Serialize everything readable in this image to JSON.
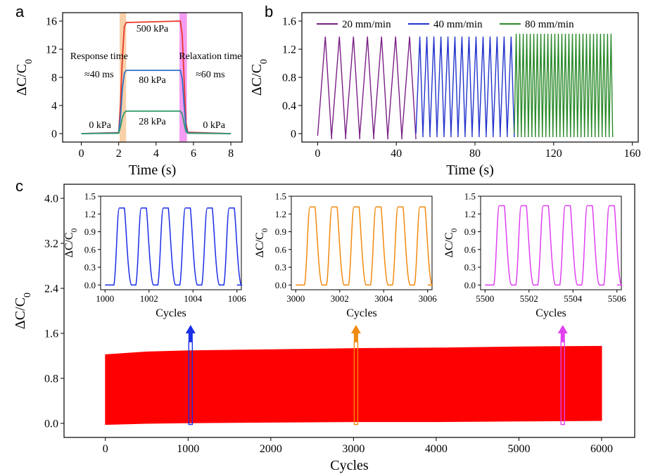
{
  "panels": {
    "a": {
      "label": "a"
    },
    "b": {
      "label": "b"
    },
    "c": {
      "label": "c"
    }
  },
  "chart_data": [
    {
      "id": "a",
      "type": "line",
      "xlabel": "Time (s)",
      "ylabel": "ΔC/C",
      "ylabel_sub": "0",
      "xlim": [
        -1,
        8.6
      ],
      "ylim": [
        -1.2,
        17.2
      ],
      "xticks": [
        0,
        2,
        4,
        6,
        8
      ],
      "yticks": [
        0,
        4,
        8,
        12,
        16
      ],
      "series": [
        {
          "name": "500 kPa",
          "color": "#e8382a",
          "x": [
            0,
            2.0,
            2.1,
            2.2,
            2.3,
            2.4,
            5.3,
            5.4,
            5.5,
            5.6,
            5.7,
            8.0
          ],
          "y": [
            0,
            0.15,
            4.5,
            11.0,
            15.2,
            15.8,
            16.0,
            14.0,
            7.5,
            1.5,
            0.2,
            0
          ]
        },
        {
          "name": "80 kPa",
          "color": "#2e72c9",
          "x": [
            0,
            2.0,
            2.1,
            2.2,
            2.3,
            2.4,
            5.3,
            5.4,
            5.5,
            5.6,
            5.7,
            8.0
          ],
          "y": [
            0,
            0.1,
            2.5,
            6.5,
            8.6,
            9.0,
            9.0,
            7.8,
            4.0,
            0.8,
            0.1,
            0
          ]
        },
        {
          "name": "28 kPa",
          "color": "#2f9a6a",
          "x": [
            0,
            2.0,
            2.1,
            2.2,
            2.3,
            2.4,
            5.3,
            5.4,
            5.5,
            5.6,
            5.7,
            8.0
          ],
          "y": [
            0,
            0.05,
            1.0,
            2.3,
            3.0,
            3.2,
            3.2,
            2.8,
            1.4,
            0.3,
            0.05,
            0
          ]
        }
      ],
      "bands": [
        {
          "x0": 2.05,
          "x1": 2.4,
          "color": "#f7c99a"
        },
        {
          "x0": 5.25,
          "x1": 5.65,
          "color": "#f28bf0"
        }
      ],
      "annotations": {
        "p500": "500 kPa",
        "p80": "80 kPa",
        "p28": "28 kPa",
        "p0_left": "0 kPa",
        "p0_right": "0 kPa",
        "response_title": "Response time",
        "response_value": "≈40 ms",
        "relax_title": "Relaxation time",
        "relax_value": "≈60 ms"
      }
    },
    {
      "id": "b",
      "type": "line",
      "xlabel": "Time (s)",
      "ylabel": "ΔC/C",
      "ylabel_sub": "0",
      "xlim": [
        -8,
        163
      ],
      "ylim": [
        -0.12,
        1.72
      ],
      "xticks": [
        0,
        40,
        80,
        120,
        160
      ],
      "yticks": [
        0.0,
        0.4,
        0.8,
        1.2,
        1.6
      ],
      "series": [
        {
          "name": "20 mm/min",
          "color": "#7a1f86",
          "x_start": 0,
          "x_end": 50,
          "cycles": 7,
          "peak": 1.38,
          "base": -0.03
        },
        {
          "name": "40 mm/min",
          "color": "#2233cc",
          "x_start": 50,
          "x_end": 100,
          "cycles": 14,
          "peak": 1.38,
          "base": 0.0
        },
        {
          "name": "80 mm/min",
          "color": "#2a8a2a",
          "x_start": 100,
          "x_end": 150,
          "cycles": 28,
          "peak": 1.42,
          "base": 0.0
        }
      ]
    },
    {
      "id": "c",
      "type": "area",
      "xlabel": "Cycles",
      "ylabel": "ΔC/C",
      "ylabel_sub": "0",
      "xlim": [
        -500,
        6400
      ],
      "ylim": [
        -0.25,
        4.25
      ],
      "xticks": [
        0,
        1000,
        2000,
        3000,
        4000,
        5000,
        6000
      ],
      "yticks": [
        0.0,
        0.8,
        1.6,
        2.4,
        3.2,
        4.0
      ],
      "ytick_labels": [
        "0.0",
        "0.8",
        "1.6",
        "2.4",
        "3.2",
        "4.0"
      ],
      "series": [
        {
          "name": "",
          "color": "#ff0000",
          "x": [
            0,
            500,
            1000,
            2000,
            3000,
            4000,
            5000,
            6000
          ],
          "top": [
            1.22,
            1.27,
            1.29,
            1.31,
            1.33,
            1.34,
            1.36,
            1.37
          ],
          "bottom": [
            -0.02,
            0.0,
            0.01,
            0.02,
            0.03,
            0.03,
            0.04,
            0.05
          ]
        }
      ],
      "markers": [
        {
          "x": 1030,
          "color": "#1a2ee6"
        },
        {
          "x": 3030,
          "color": "#f08a10"
        },
        {
          "x": 5530,
          "color": "#e040f0"
        }
      ],
      "insets": [
        {
          "xlabel": "Cycles",
          "ylabel": "ΔC/C",
          "ylabel_sub": "0",
          "color": "#1a2ee6",
          "xlim": [
            999.8,
            1006.2
          ],
          "ylim": [
            -0.08,
            1.5
          ],
          "xticks": [
            1000,
            1002,
            1004,
            1006
          ],
          "yticks": [
            0.0,
            0.3,
            0.6,
            0.9,
            1.2,
            1.5
          ],
          "ytick_labels": [
            "0.0",
            "0.3",
            "0.6",
            "0.9",
            "1.2",
            "1.5"
          ],
          "x0": 1000.5,
          "period": 1.0,
          "cycles": 6,
          "peak": 1.3,
          "base": 0.0
        },
        {
          "xlabel": "Cycles",
          "ylabel": "ΔC/C",
          "ylabel_sub": "0",
          "color": "#f08a10",
          "xlim": [
            2999.8,
            3006.2
          ],
          "ylim": [
            -0.08,
            1.5
          ],
          "xticks": [
            3000,
            3002,
            3004,
            3006
          ],
          "yticks": [
            0.0,
            0.3,
            0.6,
            0.9,
            1.2,
            1.5
          ],
          "ytick_labels": [
            "0.0",
            "0.3",
            "0.6",
            "0.9",
            "1.2",
            "1.5"
          ],
          "x0": 3000.5,
          "period": 1.0,
          "cycles": 6,
          "peak": 1.32,
          "base": 0.0
        },
        {
          "xlabel": "Cycles",
          "ylabel": "ΔC/C",
          "ylabel_sub": "0",
          "color": "#e040f0",
          "xlim": [
            5499.8,
            5506.2
          ],
          "ylim": [
            -0.08,
            1.5
          ],
          "xticks": [
            5500,
            5502,
            5504,
            5506
          ],
          "yticks": [
            0.0,
            0.3,
            0.6,
            0.9,
            1.2,
            1.5
          ],
          "ytick_labels": [
            "0.0",
            "0.3",
            "0.6",
            "0.9",
            "1.2",
            "1.5"
          ],
          "x0": 5500.5,
          "period": 1.0,
          "cycles": 6,
          "peak": 1.34,
          "base": 0.0
        }
      ]
    }
  ]
}
